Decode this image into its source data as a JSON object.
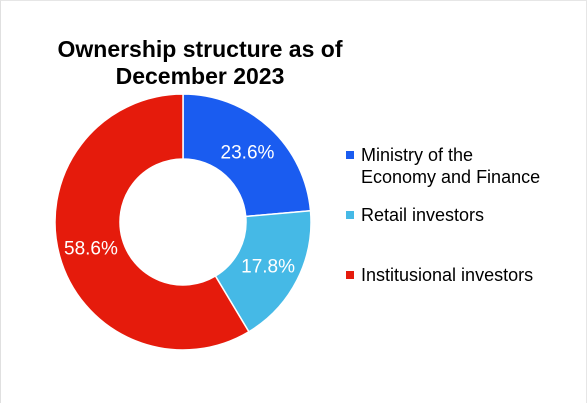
{
  "chart_data": {
    "type": "pie",
    "subtype": "donut",
    "title_lines": [
      "Ownership structure as of",
      "December 2023"
    ],
    "slices": [
      {
        "label": "Ministry of the\nEconomy and Finance",
        "value": 23.6,
        "value_label": "23.6%",
        "color": "#1a5cf0"
      },
      {
        "label": "Retail investors",
        "value": 17.8,
        "value_label": "17.8%",
        "color": "#45b9e6"
      },
      {
        "label": "Institusional investors",
        "value": 58.6,
        "value_label": "58.6%",
        "color": "#e51b0c"
      }
    ],
    "legend_position": "right"
  }
}
